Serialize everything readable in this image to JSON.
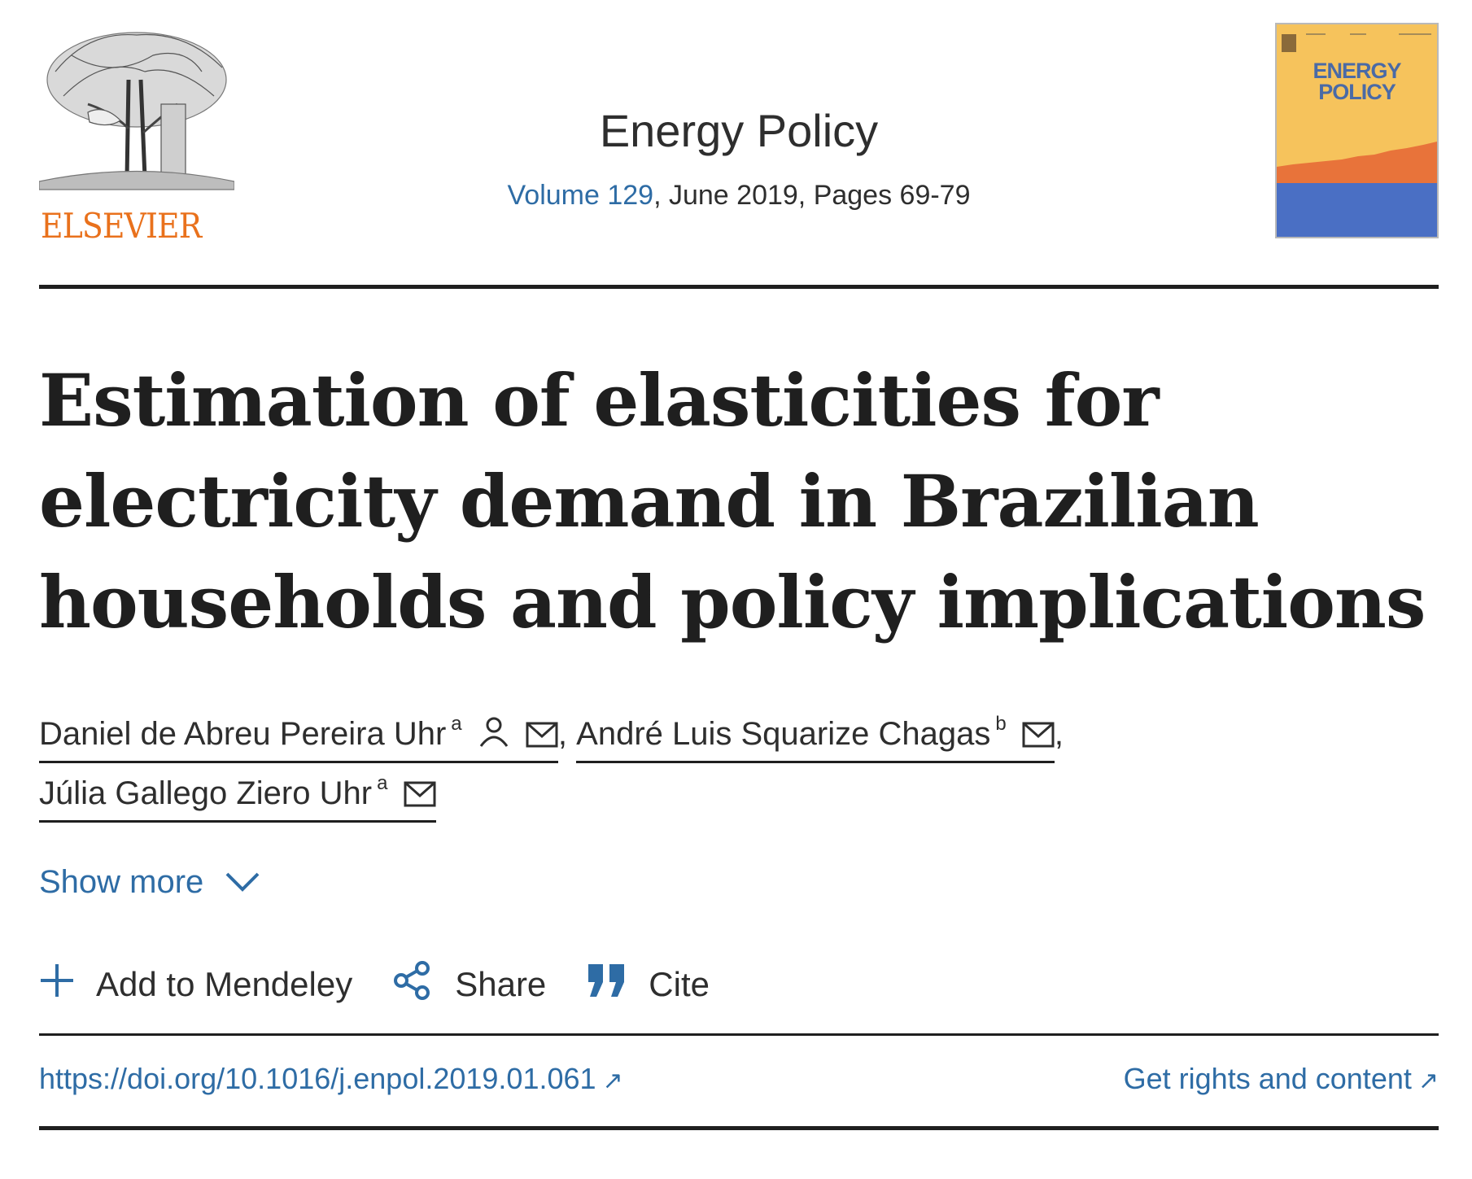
{
  "publisher": {
    "logo_text": "ELSEVIER",
    "logo_color": "#e9711c"
  },
  "journal": {
    "name": "Energy Policy",
    "volume_link": "Volume 129",
    "issue_info": ", June 2019, Pages 69-79",
    "cover_title_line1": "ENERGY",
    "cover_title_line2": "POLICY"
  },
  "article": {
    "title": "Estimation of elasticities for electricity demand in Brazilian households and policy implications"
  },
  "authors": [
    {
      "name": "Daniel de Abreu Pereira Uhr",
      "affiliation": "a",
      "corresponding": true,
      "email": true
    },
    {
      "name": "André Luis Squarize Chagas",
      "affiliation": "b",
      "corresponding": false,
      "email": true
    },
    {
      "name": "Júlia Gallego Ziero Uhr",
      "affiliation": "a",
      "corresponding": false,
      "email": true
    }
  ],
  "separator": ",",
  "show_more": "Show more",
  "actions": {
    "mendeley": "Add to Mendeley",
    "share": "Share",
    "cite": "Cite"
  },
  "links": {
    "doi": "https://doi.org/10.1016/j.enpol.2019.01.061",
    "rights": "Get rights and content"
  },
  "colors": {
    "link": "#2e6ca5",
    "text": "#1f1f1f",
    "cover_bg": "#f6c35c",
    "cover_orange": "#e8733a",
    "cover_blue": "#4a6fc4"
  }
}
